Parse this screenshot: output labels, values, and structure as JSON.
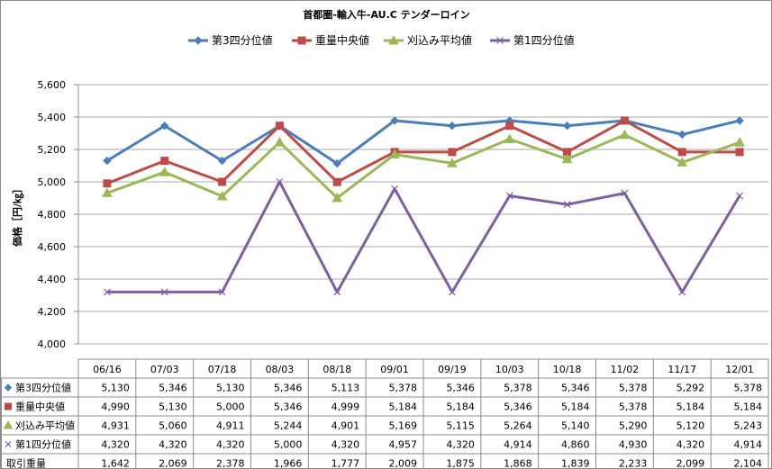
{
  "chart_data": {
    "type": "line",
    "title": "首都圏-輸入牛-AU.C テンダーロイン",
    "ylabel": "価格［円/㎏］",
    "xlabel": "",
    "ylim": [
      4000,
      5600
    ],
    "yticks": [
      "4,000",
      "4,200",
      "4,400",
      "4,600",
      "4,800",
      "5,000",
      "5,200",
      "5,400",
      "5,600"
    ],
    "grid": true,
    "legend_position": "top",
    "categories": [
      "06/16",
      "07/03",
      "07/18",
      "08/03",
      "08/18",
      "09/01",
      "09/19",
      "10/03",
      "10/18",
      "11/02",
      "11/17",
      "12/01"
    ],
    "series": [
      {
        "name": "第3四分位値",
        "color": "#4a7ebb",
        "marker": "diamond",
        "values": [
          5130,
          5346,
          5130,
          5346,
          5113,
          5378,
          5346,
          5378,
          5346,
          5378,
          5292,
          5378
        ],
        "labels": [
          "5,130",
          "5,346",
          "5,130",
          "5,346",
          "5,113",
          "5,378",
          "5,346",
          "5,378",
          "5,346",
          "5,378",
          "5,292",
          "5,378"
        ]
      },
      {
        "name": "重量中央値",
        "color": "#be4b48",
        "marker": "square",
        "values": [
          4990,
          5130,
          5000,
          5346,
          4999,
          5184,
          5184,
          5346,
          5184,
          5378,
          5184,
          5184
        ],
        "labels": [
          "4,990",
          "5,130",
          "5,000",
          "5,346",
          "4,999",
          "5,184",
          "5,184",
          "5,346",
          "5,184",
          "5,378",
          "5,184",
          "5,184"
        ]
      },
      {
        "name": "刈込み平均値",
        "color": "#98b954",
        "marker": "triangle",
        "values": [
          4931,
          5060,
          4911,
          5244,
          4901,
          5169,
          5115,
          5264,
          5140,
          5290,
          5120,
          5243
        ],
        "labels": [
          "4,931",
          "5,060",
          "4,911",
          "5,244",
          "4,901",
          "5,169",
          "5,115",
          "5,264",
          "5,140",
          "5,290",
          "5,120",
          "5,243"
        ]
      },
      {
        "name": "第1四分位値",
        "color": "#7d60a0",
        "marker": "x",
        "values": [
          4320,
          4320,
          4320,
          5000,
          4320,
          4957,
          4320,
          4914,
          4860,
          4930,
          4320,
          4914
        ],
        "labels": [
          "4,320",
          "4,320",
          "4,320",
          "5,000",
          "4,320",
          "4,957",
          "4,320",
          "4,914",
          "4,860",
          "4,930",
          "4,320",
          "4,914"
        ]
      }
    ],
    "table_extra_rows": [
      {
        "name": "取引重量",
        "values": [
          "1,642",
          "2,069",
          "2,378",
          "1,966",
          "1,777",
          "2,009",
          "1,875",
          "1,868",
          "1,839",
          "2,233",
          "2,099",
          "2,104"
        ]
      }
    ]
  }
}
